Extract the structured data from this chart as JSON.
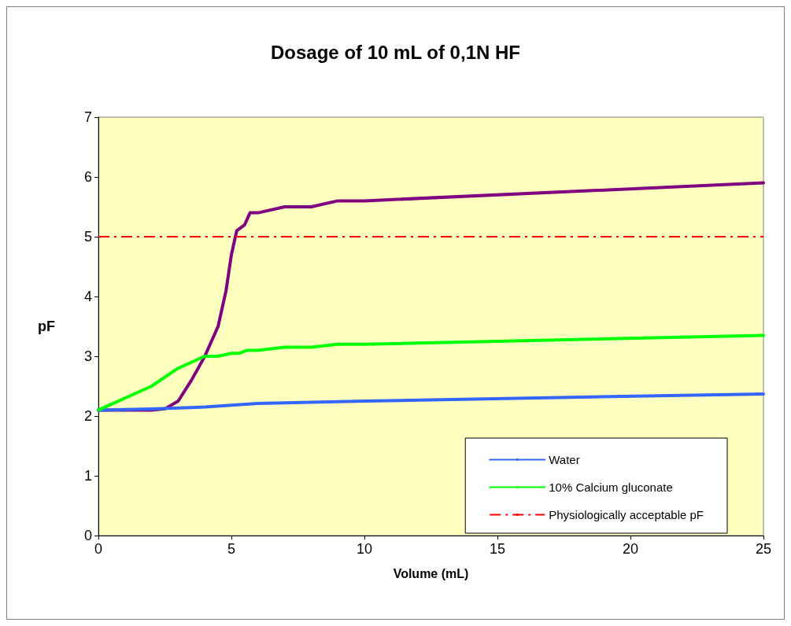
{
  "chart_data": {
    "type": "line",
    "title": "Dosage of 10 mL of 0,1N HF",
    "xlabel": "Volume (mL)",
    "ylabel": "pF",
    "series": [
      {
        "color": "#800080",
        "x": [
          0,
          1,
          2,
          2.5,
          3,
          3.5,
          4,
          4.5,
          4.8,
          5,
          5.2,
          5.5,
          5.7,
          6,
          7,
          8,
          9,
          10,
          25
        ],
        "values": [
          2.1,
          2.1,
          2.1,
          2.12,
          2.25,
          2.6,
          3.0,
          3.5,
          4.1,
          4.7,
          5.1,
          5.2,
          5.4,
          5.4,
          5.5,
          5.5,
          5.6,
          5.6,
          5.9
        ]
      },
      {
        "name": "Water",
        "color": "#3366ff",
        "x": [
          0,
          2,
          4,
          6,
          10,
          25
        ],
        "values": [
          2.1,
          2.12,
          2.15,
          2.21,
          2.25,
          2.37
        ]
      },
      {
        "name": "10% Calcium gluconate",
        "color": "#00ff00",
        "x": [
          0,
          1,
          2,
          3,
          4,
          4.5,
          5,
          5.3,
          5.6,
          6,
          7,
          8,
          9,
          10,
          25
        ],
        "values": [
          2.1,
          2.3,
          2.5,
          2.8,
          3.0,
          3.0,
          3.05,
          3.05,
          3.1,
          3.1,
          3.15,
          3.15,
          3.2,
          3.2,
          3.35
        ]
      }
    ],
    "ref_lines": [
      {
        "axis": "y",
        "value": 5,
        "label": "Physiologically acceptable pF",
        "color": "#ff0000",
        "line_style": "dashed"
      }
    ],
    "xlim": [
      0,
      25
    ],
    "xticks": [
      0,
      5,
      10,
      15,
      20,
      25
    ],
    "ylim": [
      0,
      7
    ],
    "yticks": [
      0,
      1,
      2,
      3,
      4,
      5,
      6,
      7
    ],
    "grid": false,
    "legend": "bottom right",
    "marker": "none",
    "line_style": "solid"
  }
}
